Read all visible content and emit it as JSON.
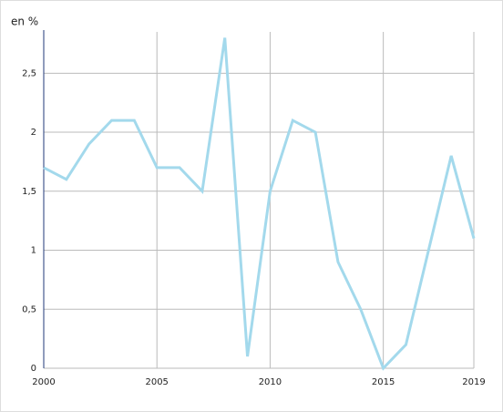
{
  "chart_data": {
    "type": "line",
    "y_label": "en %",
    "x": [
      2000,
      2001,
      2002,
      2003,
      2004,
      2005,
      2006,
      2007,
      2008,
      2009,
      2010,
      2011,
      2012,
      2013,
      2014,
      2015,
      2016,
      2017,
      2018,
      2019
    ],
    "values": [
      1.7,
      1.6,
      1.9,
      2.1,
      2.1,
      1.7,
      1.7,
      1.5,
      2.8,
      0.1,
      1.5,
      2.1,
      2.0,
      0.9,
      0.5,
      0.0,
      0.2,
      1.0,
      1.8,
      1.1
    ],
    "color": "#a3d9ec",
    "xlim": [
      2000,
      2019
    ],
    "xticks": [
      2000,
      2005,
      2010,
      2015,
      2019
    ],
    "ylim": [
      0,
      2.85
    ],
    "yticks": [
      0,
      {
        "value": 0.5,
        "label": "0,5"
      },
      1,
      {
        "value": 1.5,
        "label": "1,5"
      },
      2,
      {
        "value": 2.5,
        "label": "2,5"
      }
    ],
    "grid": true
  }
}
